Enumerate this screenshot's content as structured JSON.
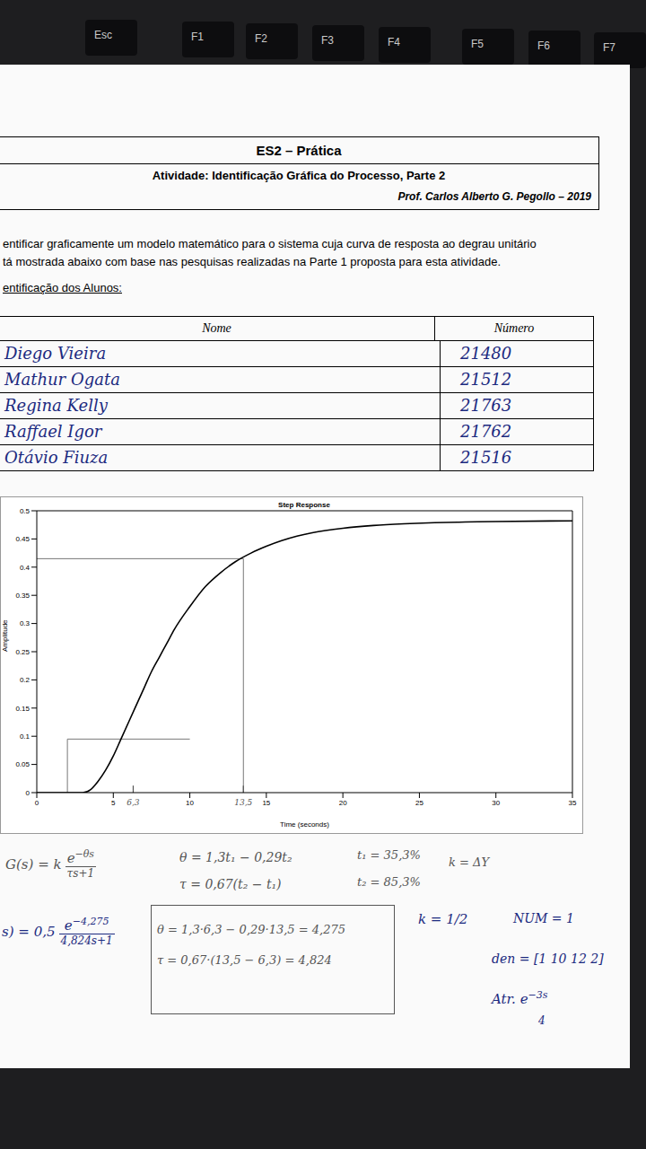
{
  "keyboard": [
    "Esc",
    "F1",
    "F2",
    "F3",
    "F4",
    "F5",
    "F6",
    "F7"
  ],
  "header": {
    "title": "ES2 – Prática",
    "subtitle": "Atividade: Identificação Gráfica do Processo, Parte 2",
    "author": "Prof. Carlos Alberto G. Pegollo – 2019"
  },
  "instructions": [
    "entificar graficamente um modelo matemático para o sistema cuja curva de resposta ao degrau unitário",
    "tá mostrada abaixo com base nas pesquisas realizadas na Parte 1 proposta para esta atividade."
  ],
  "students_heading": "entificação dos Alunos:",
  "table": {
    "columns": [
      "Nome",
      "Número"
    ],
    "rows": [
      [
        "Diego Vieira",
        "21480"
      ],
      [
        "Mathur Ogata",
        "21512"
      ],
      [
        "Regina Kelly",
        "21763"
      ],
      [
        "Raffael Igor",
        "21762"
      ],
      [
        "Otávio Fiuza",
        "21516"
      ]
    ]
  },
  "chart_data": {
    "type": "line",
    "title": "Step Response",
    "x_label": "Time (seconds)",
    "y_label": "Amplitude",
    "x": [
      0,
      2,
      3,
      3.5,
      4,
      4.5,
      5,
      5.5,
      6,
      6.5,
      7,
      7.5,
      8,
      8.5,
      9,
      10,
      11,
      12,
      13,
      14,
      15,
      16,
      17,
      18,
      20,
      22,
      24,
      26,
      28,
      30,
      35
    ],
    "values": [
      0,
      0,
      0,
      0.005,
      0.02,
      0.04,
      0.065,
      0.095,
      0.125,
      0.155,
      0.185,
      0.215,
      0.24,
      0.265,
      0.29,
      0.33,
      0.365,
      0.39,
      0.41,
      0.425,
      0.437,
      0.447,
      0.455,
      0.461,
      0.469,
      0.474,
      0.477,
      0.479,
      0.48,
      0.481,
      0.482
    ],
    "color": "#000000",
    "xlim": [
      0,
      35
    ],
    "xticks": [
      0,
      5,
      10,
      15,
      20,
      25,
      30,
      35
    ],
    "ylim": [
      0,
      0.5
    ],
    "yticks": [
      0,
      0.05,
      0.1,
      0.15,
      0.2,
      0.25,
      0.3,
      0.35,
      0.4,
      0.45,
      0.5
    ],
    "grid": false,
    "guide_lines": [
      {
        "points": [
          [
            0,
            0.415
          ],
          [
            13.5,
            0.415
          ]
        ]
      },
      {
        "points": [
          [
            13.5,
            0
          ],
          [
            13.5,
            0.415
          ]
        ]
      },
      {
        "points": [
          [
            2,
            0
          ],
          [
            2,
            0.095
          ],
          [
            10,
            0.095
          ]
        ]
      }
    ],
    "annotations": [
      {
        "x": 6.3,
        "label": "6,3"
      },
      {
        "x": 13.5,
        "label": "13,5"
      }
    ]
  },
  "notes": {
    "model": {
      "prefix": "G(s) = k",
      "numerator": "e",
      "exponent": "−θs",
      "denominator": "τs+1"
    },
    "formulas": [
      "θ = 1,3t₁ − 0,29t₂",
      "τ = 0,67(t₂ − t₁)"
    ],
    "percentages": [
      "t₁ = 35,3%",
      "t₂ = 85,3%"
    ],
    "gain": "k = ΔY",
    "result": {
      "prefix": "s) = 0,5",
      "numerator": "e",
      "exponent": "−4,275",
      "denominator": "4,824s+1"
    },
    "calculations": [
      "θ = 1,3·6,3 − 0,29·13,5 = 4,275",
      "τ = 0,67·(13,5 − 6,3) = 4,824"
    ],
    "k_value": "k = 1/2",
    "num": "NUM = 1",
    "den": "den = [1 10 12 2]",
    "delay": {
      "text": "Atr. e",
      "exponent": "−3s"
    },
    "page_number": "4"
  }
}
